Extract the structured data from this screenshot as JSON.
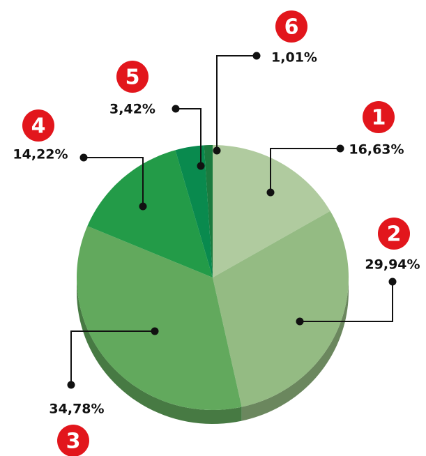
{
  "chart_data": {
    "type": "pie",
    "categories": [
      "1",
      "2",
      "3",
      "4",
      "5",
      "6"
    ],
    "values": [
      16.63,
      29.94,
      34.78,
      14.22,
      3.42,
      1.01
    ],
    "value_labels": [
      "16,63%",
      "29,94%",
      "34,78%",
      "14,22%",
      "3,42%",
      "1,01%"
    ],
    "colors": [
      "#b0cb9f",
      "#94bb83",
      "#62a95d",
      "#239b48",
      "#098a4e",
      "#1b7b3f"
    ],
    "badge_color": "#e2161c"
  }
}
